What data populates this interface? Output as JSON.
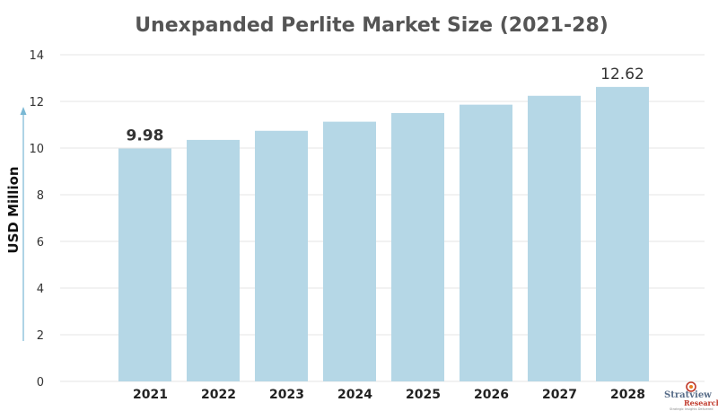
{
  "chart_data": {
    "type": "bar",
    "title": "Unexpanded Perlite Market Size (2021-28)",
    "xlabel": "",
    "ylabel": "USD Million",
    "categories": [
      "2021",
      "2022",
      "2023",
      "2024",
      "2025",
      "2026",
      "2027",
      "2028"
    ],
    "values": [
      9.98,
      10.35,
      10.74,
      11.13,
      11.5,
      11.86,
      12.24,
      12.62
    ],
    "ylim": [
      0,
      14
    ],
    "yticks": [
      "0",
      "2",
      "4",
      "6",
      "8",
      "10",
      "12",
      "14"
    ],
    "data_labels": [
      {
        "category": "2021",
        "text": "9.98"
      },
      {
        "category": "2028",
        "text": "12.62"
      }
    ],
    "grid": true,
    "bar_color": "#b5d7e6",
    "grid_color": "#e6e6e6",
    "axis_arrow_color": "#7ab8d4"
  },
  "logo": {
    "name": "Stratview",
    "sub": "Research",
    "tagline": "Strategic Insights Delivered"
  }
}
